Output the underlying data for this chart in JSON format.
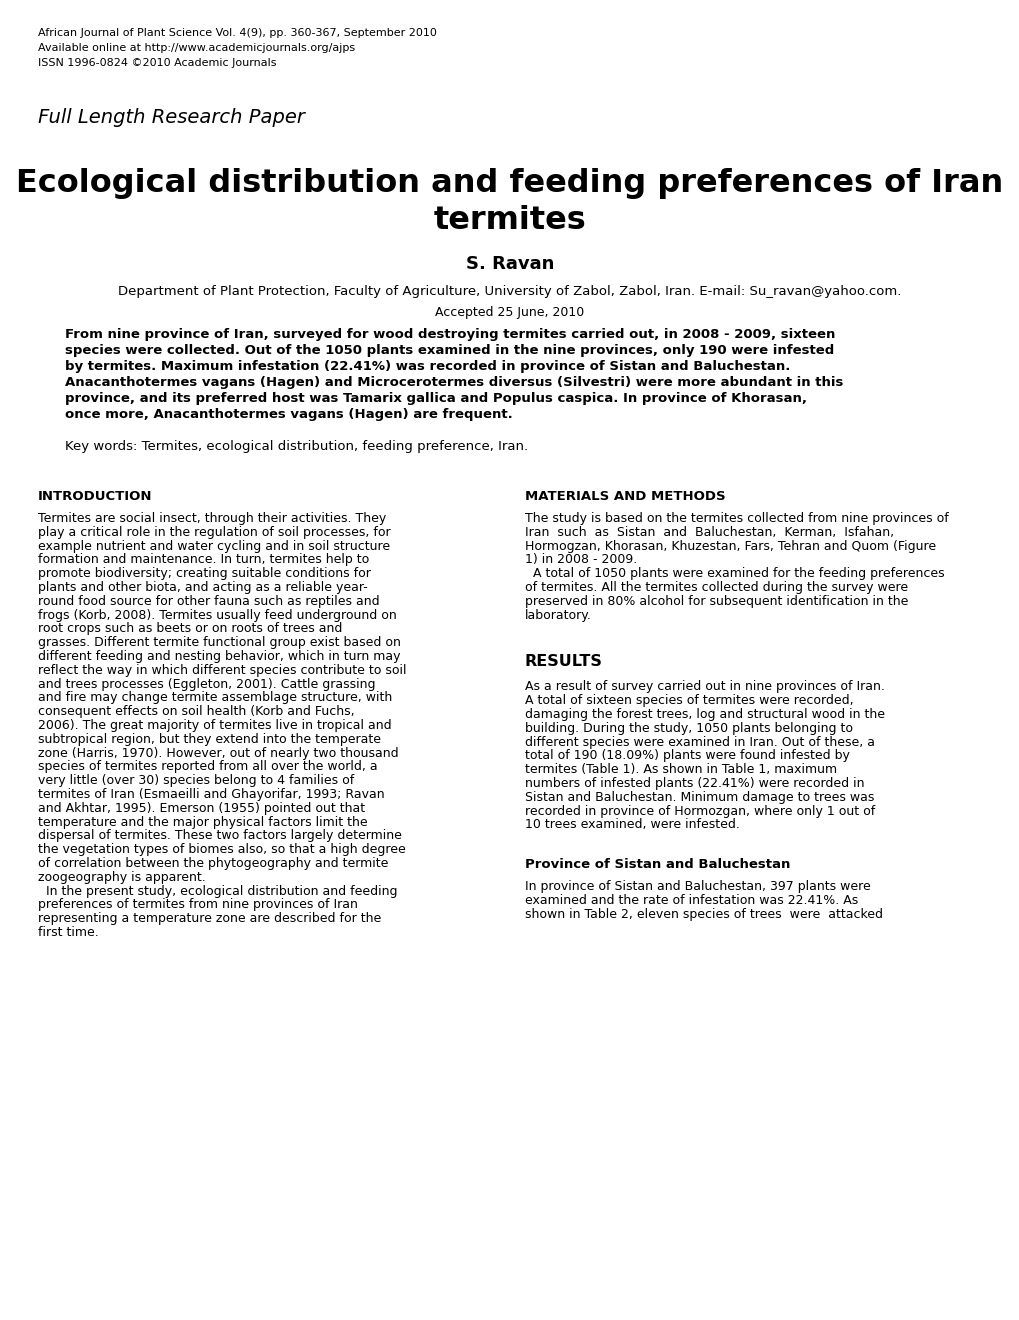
{
  "bg_color": "#ffffff",
  "header_lines": [
    "African Journal of Plant Science Vol. 4(9), pp. 360-367, September 2010",
    "Available online at http://www.academicjournals.org/ajps",
    "ISSN 1996-0824 ©2010 Academic Journals"
  ],
  "subtitle": "Full Length Research Paper",
  "title_line1": "Ecological distribution and feeding preferences of Iran",
  "title_line2": "termites",
  "author": "S. Ravan",
  "affiliation": "Department of Plant Protection, Faculty of Agriculture, University of Zabol, Zabol, Iran. E-mail: Su_ravan@yahoo.com.",
  "accepted": "Accepted 25 June, 2010",
  "abs_lines": [
    "From nine province of Iran, surveyed for wood destroying termites carried out, in 2008 - 2009, sixteen",
    "species were collected. Out of the 1050 plants examined in the nine provinces, only 190 were infested",
    "by termites. Maximum infestation (22.41%) was recorded in province of Sistan and Baluchestan.",
    "Anacanthotermes vagans (Hagen) and Microcerotermes diversus (Silvestri) were more abundant in this",
    "province, and its preferred host was Tamarix gallica and Populus caspica. In province of Khorasan,",
    "once more, Anacanthotermes vagans (Hagen) are frequent."
  ],
  "keywords": "Key words: Termites, ecological distribution, feeding preference, Iran.",
  "intro_heading": "INTRODUCTION",
  "intro_lines": [
    "Termites are social insect, through their activities. They",
    "play a critical role in the regulation of soil processes, for",
    "example nutrient and water cycling and in soil structure",
    "formation and maintenance. In turn, termites help to",
    "promote biodiversity; creating suitable conditions for",
    "plants and other biota, and acting as a reliable year-",
    "round food source for other fauna such as reptiles and",
    "frogs (Korb, 2008). Termites usually feed underground on",
    "root crops such as beets or on roots of trees and",
    "grasses. Different termite functional group exist based on",
    "different feeding and nesting behavior, which in turn may",
    "reflect the way in which different species contribute to soil",
    "and trees processes (Eggleton, 2001). Cattle grassing",
    "and fire may change termite assemblage structure, with",
    "consequent effects on soil health (Korb and Fuchs,",
    "2006). The great majority of termites live in tropical and",
    "subtropical region, but they extend into the temperate",
    "zone (Harris, 1970). However, out of nearly two thousand",
    "species of termites reported from all over the world, a",
    "very little (over 30) species belong to 4 families of",
    "termites of Iran (Esmaeilli and Ghayorifar, 1993; Ravan",
    "and Akhtar, 1995). Emerson (1955) pointed out that",
    "temperature and the major physical factors limit the",
    "dispersal of termites. These two factors largely determine",
    "the vegetation types of biomes also, so that a high degree",
    "of correlation between the phytogeography and termite",
    "zoogeography is apparent.",
    "  In the present study, ecological distribution and feeding",
    "preferences of termites from nine provinces of Iran",
    "representing a temperature zone are described for the",
    "first time."
  ],
  "matmeth_heading": "MATERIALS AND METHODS",
  "matmeth_lines": [
    "The study is based on the termites collected from nine provinces of",
    "Iran  such  as  Sistan  and  Baluchestan,  Kerman,  Isfahan,",
    "Hormogzan, Khorasan, Khuzestan, Fars, Tehran and Quom (Figure",
    "1) in 2008 - 2009.",
    "  A total of 1050 plants were examined for the feeding preferences",
    "of termites. All the termites collected during the survey were",
    "preserved in 80% alcohol for subsequent identification in the",
    "laboratory."
  ],
  "results_heading": "RESULTS",
  "results_lines": [
    "As a result of survey carried out in nine provinces of Iran.",
    "A total of sixteen species of termites were recorded,",
    "damaging the forest trees, log and structural wood in the",
    "building. During the study, 1050 plants belonging to",
    "different species were examined in Iran. Out of these, a",
    "total of 190 (18.09%) plants were found infested by",
    "termites (Table 1). As shown in Table 1, maximum",
    "numbers of infested plants (22.41%) were recorded in",
    "Sistan and Baluchestan. Minimum damage to trees was",
    "recorded in province of Hormozgan, where only 1 out of",
    "10 trees examined, were infested."
  ],
  "sistan_heading": "Province of Sistan and Baluchestan",
  "sistan_lines": [
    "In province of Sistan and Baluchestan, 397 plants were",
    "examined and the rate of infestation was 22.41%. As",
    "shown in Table 2, eleven species of trees  were  attacked"
  ]
}
